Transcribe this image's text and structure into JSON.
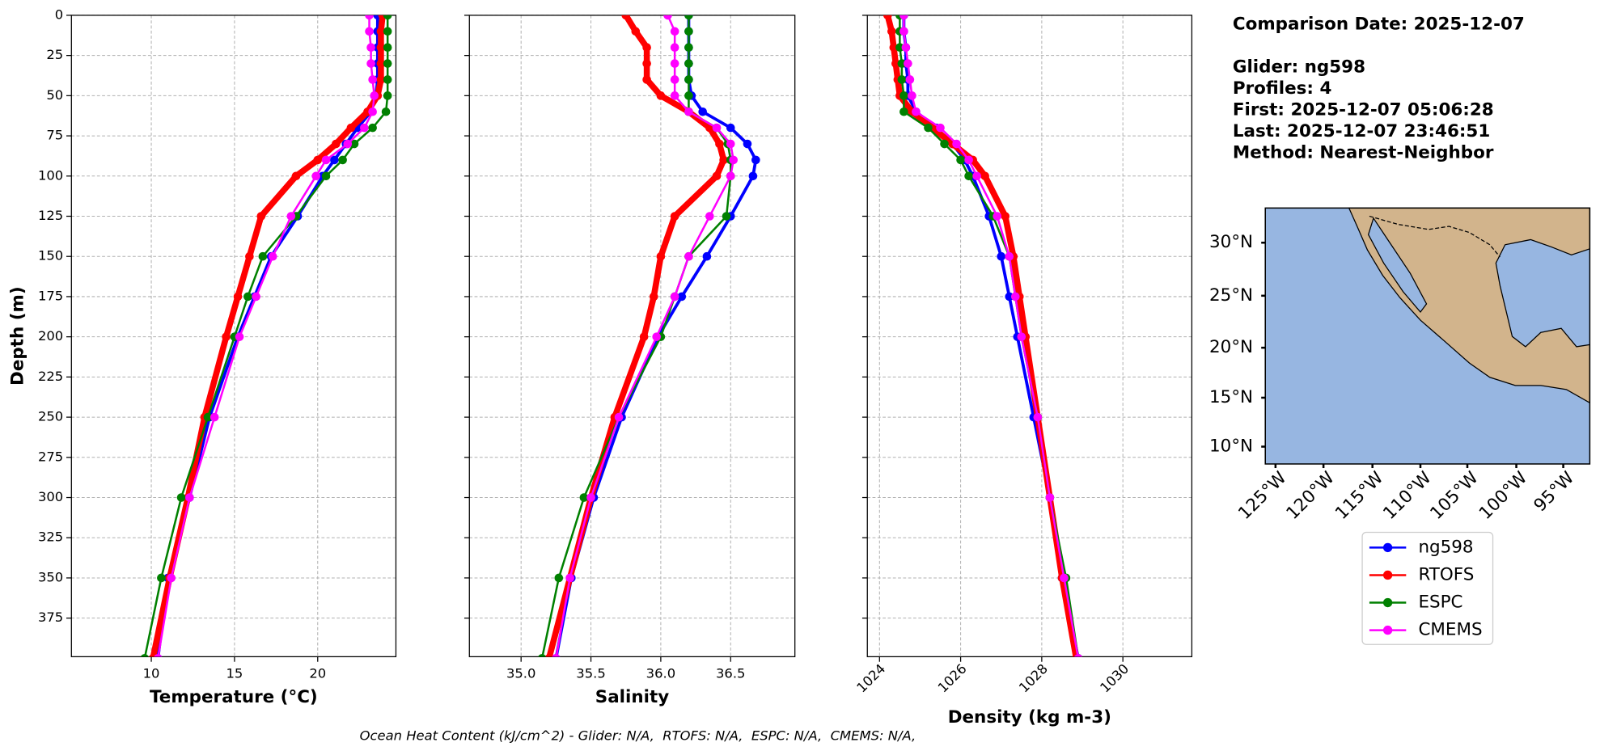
{
  "chart_data": [
    {
      "type": "line",
      "xlabel": "Temperature (°C)",
      "ylabel": "Depth (m)",
      "xlim": [
        5.2,
        24.7
      ],
      "xticks": [
        10,
        15,
        20
      ],
      "ylim": [
        399,
        0
      ],
      "yticks": [
        0,
        25,
        50,
        75,
        100,
        125,
        150,
        175,
        200,
        225,
        250,
        275,
        300,
        325,
        350,
        375
      ],
      "ytick_labels": true,
      "grid": true,
      "depth": [
        0,
        10,
        20,
        30,
        40,
        50,
        60,
        70,
        80,
        90,
        100,
        125,
        150,
        175,
        200,
        250,
        300,
        350,
        400
      ],
      "series": [
        {
          "name": "ng598",
          "color": "#0000ff",
          "linewidth": 3,
          "values": [
            23.6,
            23.6,
            23.6,
            23.6,
            23.6,
            23.5,
            23.2,
            22.4,
            21.7,
            21.0,
            20.3,
            18.8,
            17.2,
            16.2,
            15.2,
            13.5,
            12.3,
            11.0,
            10.4
          ]
        },
        {
          "name": "RTOFS",
          "color": "#ff0000",
          "linewidth": 6,
          "values": [
            23.9,
            23.8,
            23.8,
            23.8,
            23.8,
            23.6,
            23.0,
            22.0,
            21.1,
            20.0,
            18.7,
            16.6,
            15.9,
            15.2,
            14.5,
            13.2,
            12.2,
            11.1,
            10.1
          ]
        },
        {
          "name": "ESPC",
          "color": "#008000",
          "linewidth": 2,
          "values": [
            24.2,
            24.2,
            24.2,
            24.2,
            24.2,
            24.2,
            24.1,
            23.3,
            22.2,
            21.5,
            20.5,
            18.7,
            16.7,
            15.8,
            15.0,
            13.4,
            11.8,
            10.6,
            9.6
          ]
        },
        {
          "name": "CMEMS",
          "color": "#ff00ff",
          "linewidth": 2,
          "values": [
            23.1,
            23.1,
            23.2,
            23.2,
            23.3,
            23.4,
            23.3,
            22.8,
            21.8,
            20.5,
            19.9,
            18.4,
            17.3,
            16.3,
            15.3,
            13.8,
            12.3,
            11.2,
            10.4
          ]
        }
      ]
    },
    {
      "type": "line",
      "xlabel": "Salinity",
      "xlim": [
        34.63,
        36.96
      ],
      "xticks": [
        {
          "value": 35,
          "label": "35.0"
        },
        35.5,
        {
          "value": 36,
          "label": "36.0"
        },
        36.5
      ],
      "ylim": [
        399,
        0
      ],
      "yticks": [
        0,
        25,
        50,
        75,
        100,
        125,
        150,
        175,
        200,
        225,
        250,
        275,
        300,
        325,
        350,
        375
      ],
      "ytick_labels": false,
      "grid": true,
      "depth": [
        0,
        10,
        20,
        30,
        40,
        50,
        60,
        70,
        80,
        90,
        100,
        125,
        150,
        175,
        200,
        250,
        300,
        350,
        400
      ],
      "series": [
        {
          "name": "ng598",
          "color": "#0000ff",
          "linewidth": 3,
          "values": [
            36.2,
            36.2,
            36.2,
            36.2,
            36.2,
            36.22,
            36.3,
            36.5,
            36.62,
            36.68,
            36.66,
            36.5,
            36.33,
            36.15,
            35.98,
            35.72,
            35.52,
            35.36,
            35.25
          ]
        },
        {
          "name": "RTOFS",
          "color": "#ff0000",
          "linewidth": 6,
          "values": [
            35.75,
            35.82,
            35.9,
            35.9,
            35.9,
            36.0,
            36.2,
            36.35,
            36.42,
            36.45,
            36.4,
            36.1,
            36.0,
            35.95,
            35.88,
            35.67,
            35.5,
            35.35,
            35.2
          ]
        },
        {
          "name": "ESPC",
          "color": "#008000",
          "linewidth": 2,
          "values": [
            36.2,
            36.2,
            36.2,
            36.2,
            36.2,
            36.2,
            36.2,
            36.4,
            36.48,
            36.5,
            36.5,
            36.47,
            36.2,
            36.1,
            36.0,
            35.7,
            35.45,
            35.27,
            35.15
          ]
        },
        {
          "name": "CMEMS",
          "color": "#ff00ff",
          "linewidth": 2,
          "values": [
            36.05,
            36.1,
            36.1,
            36.1,
            36.1,
            36.1,
            36.2,
            36.4,
            36.5,
            36.52,
            36.5,
            36.35,
            36.2,
            36.1,
            35.97,
            35.7,
            35.5,
            35.35,
            35.25
          ]
        }
      ]
    },
    {
      "type": "line",
      "xlabel": "Density (kg m-3)",
      "xlim": [
        1023.7,
        1031.7
      ],
      "xticks": [
        1024,
        1026,
        1028,
        1030
      ],
      "xtick_rotation": 45,
      "ylim": [
        399,
        0
      ],
      "yticks": [
        0,
        25,
        50,
        75,
        100,
        125,
        150,
        175,
        200,
        225,
        250,
        275,
        300,
        325,
        350,
        375
      ],
      "ytick_labels": false,
      "grid": true,
      "depth": [
        0,
        10,
        20,
        30,
        40,
        50,
        60,
        70,
        80,
        90,
        100,
        125,
        150,
        175,
        200,
        250,
        300,
        350,
        400
      ],
      "series": [
        {
          "name": "ng598",
          "color": "#0000ff",
          "linewidth": 3,
          "values": [
            1024.6,
            1024.6,
            1024.65,
            1024.65,
            1024.7,
            1024.7,
            1024.9,
            1025.4,
            1025.8,
            1026.1,
            1026.3,
            1026.7,
            1027.0,
            1027.2,
            1027.4,
            1027.8,
            1028.2,
            1028.5,
            1028.9
          ]
        },
        {
          "name": "RTOFS",
          "color": "#ff0000",
          "linewidth": 6,
          "values": [
            1024.2,
            1024.3,
            1024.35,
            1024.4,
            1024.45,
            1024.5,
            1024.8,
            1025.3,
            1025.8,
            1026.3,
            1026.6,
            1027.1,
            1027.3,
            1027.45,
            1027.6,
            1027.9,
            1028.2,
            1028.5,
            1028.85
          ]
        },
        {
          "name": "ESPC",
          "color": "#008000",
          "linewidth": 2,
          "values": [
            1024.5,
            1024.5,
            1024.5,
            1024.55,
            1024.55,
            1024.6,
            1024.6,
            1025.2,
            1025.6,
            1026.0,
            1026.2,
            1026.8,
            1027.2,
            1027.35,
            1027.5,
            1027.9,
            1028.2,
            1028.6,
            1028.9
          ]
        },
        {
          "name": "CMEMS",
          "color": "#ff00ff",
          "linewidth": 2,
          "values": [
            1024.6,
            1024.6,
            1024.65,
            1024.7,
            1024.75,
            1024.8,
            1024.9,
            1025.5,
            1025.9,
            1026.2,
            1026.4,
            1026.9,
            1027.2,
            1027.35,
            1027.5,
            1027.9,
            1028.2,
            1028.55,
            1028.9
          ]
        }
      ]
    }
  ],
  "info": [
    "Comparison Date: 2025-12-07",
    "Glider: ng598",
    "Profiles: 4",
    "First: 2025-12-07 05:06:28",
    "Last: 2025-12-07 23:46:51",
    "Method: Nearest-Neighbor"
  ],
  "map": {
    "lat_labels": [
      "30°N",
      "25°N",
      "20°N",
      "15°N",
      "10°N"
    ],
    "lon_labels": [
      "125°W",
      "120°W",
      "115°W",
      "110°W",
      "105°W",
      "100°W",
      "95°W"
    ]
  },
  "footer": "Ocean Heat Content (kJ/cm^2) - Glider: N/A,  RTOFS: N/A,  ESPC: N/A,  CMEMS: N/A,"
}
